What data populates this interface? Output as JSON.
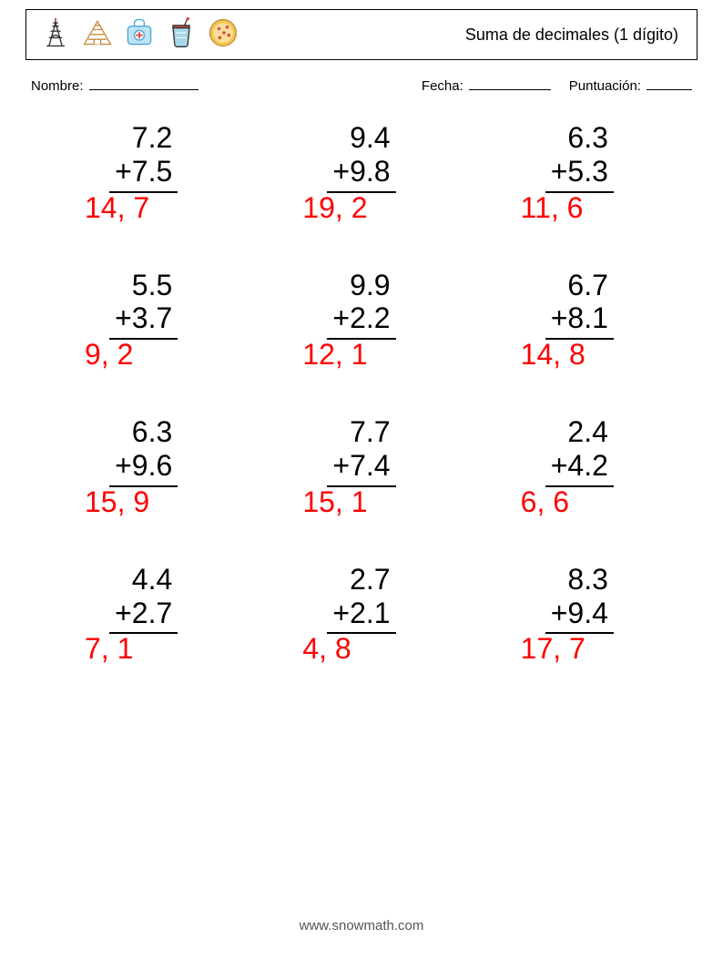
{
  "header": {
    "title": "Suma de decimales (1 dígito)",
    "icons": [
      "eiffel",
      "pyramid",
      "medkit",
      "cup",
      "pizza"
    ],
    "icon_colors": {
      "stroke": "#333333",
      "blue": "#4aa8d8",
      "red": "#e24a4a",
      "yellow": "#f2c84b",
      "brown": "#c98a3d"
    }
  },
  "meta": {
    "name_label": "Nombre:",
    "date_label": "Fecha:",
    "score_label": "Puntuación:"
  },
  "style": {
    "problem_fontsize": 32,
    "answer_color": "#ff0000",
    "text_color": "#000000",
    "grid_cols": 3,
    "grid_rows": 4
  },
  "problems": [
    {
      "a": "7.2",
      "b": "+7.5",
      "ans": "14, 7"
    },
    {
      "a": "9.4",
      "b": "+9.8",
      "ans": "19, 2"
    },
    {
      "a": "6.3",
      "b": "+5.3",
      "ans": "11, 6"
    },
    {
      "a": "5.5",
      "b": "+3.7",
      "ans": "9, 2"
    },
    {
      "a": "9.9",
      "b": "+2.2",
      "ans": "12, 1"
    },
    {
      "a": "6.7",
      "b": "+8.1",
      "ans": "14, 8"
    },
    {
      "a": "6.3",
      "b": "+9.6",
      "ans": "15, 9"
    },
    {
      "a": "7.7",
      "b": "+7.4",
      "ans": "15, 1"
    },
    {
      "a": "2.4",
      "b": "+4.2",
      "ans": "6, 6"
    },
    {
      "a": "4.4",
      "b": "+2.7",
      "ans": "7, 1"
    },
    {
      "a": "2.7",
      "b": "+2.1",
      "ans": "4, 8"
    },
    {
      "a": "8.3",
      "b": "+9.4",
      "ans": "17, 7"
    }
  ],
  "footer": "www.snowmath.com"
}
